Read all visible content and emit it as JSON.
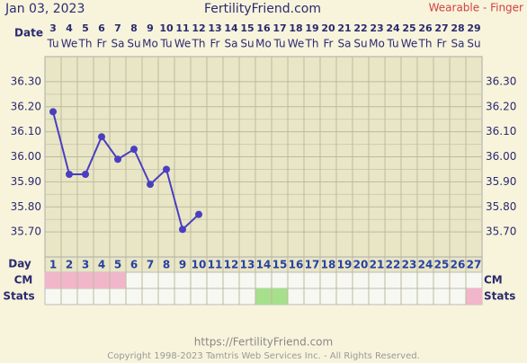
{
  "chart_data": {
    "type": "line",
    "header_date": "Jan 03, 2023",
    "site": "FertilityFriend.com",
    "source": "Wearable - Finger",
    "date_label": "Date",
    "categories": [
      "3",
      "4",
      "5",
      "6",
      "7",
      "8",
      "9",
      "10",
      "11",
      "12",
      "13",
      "14",
      "15",
      "16",
      "17",
      "18",
      "19",
      "20",
      "21",
      "22",
      "23",
      "24",
      "25",
      "26",
      "27",
      "28",
      "29"
    ],
    "weekdays": [
      "Tu",
      "We",
      "Th",
      "Fr",
      "Sa",
      "Su",
      "Mo",
      "Tu",
      "We",
      "Th",
      "Fr",
      "Sa",
      "Su",
      "Mo",
      "Tu",
      "We",
      "Th",
      "Fr",
      "Sa",
      "Su",
      "Mo",
      "Tu",
      "We",
      "Th",
      "Fr",
      "Sa",
      "Su"
    ],
    "series": [
      {
        "color": "#4a3fc0",
        "values": [
          36.18,
          35.93,
          35.93,
          36.08,
          35.99,
          36.03,
          35.89,
          35.95,
          35.71,
          35.77,
          null,
          null,
          null,
          null,
          null,
          null,
          null,
          null,
          null,
          null,
          null,
          null,
          null,
          null,
          null,
          null,
          null
        ]
      }
    ],
    "ylim": [
      35.6,
      36.4
    ],
    "yticks": [
      {
        "value": 35.7,
        "label": "35.70"
      },
      {
        "value": 35.8,
        "label": "35.80"
      },
      {
        "value": 35.9,
        "label": "35.90"
      },
      {
        "value": 36.0,
        "label": "36.00"
      },
      {
        "value": 36.1,
        "label": "36.10"
      },
      {
        "value": 36.2,
        "label": "36.20"
      },
      {
        "value": 36.3,
        "label": "36.30"
      }
    ],
    "grid": true,
    "day_label": "Day",
    "days": [
      1,
      2,
      3,
      4,
      5,
      6,
      7,
      8,
      9,
      10,
      11,
      12,
      13,
      14,
      15,
      16,
      17,
      18,
      19,
      20,
      21,
      22,
      23,
      24,
      25,
      26,
      27
    ],
    "cm_label": "CM",
    "cm_colors": [
      "#f2b6cb",
      "#f2b6cb",
      "#f2b6cb",
      "#f2b6cb",
      "#f2b6cb",
      null,
      null,
      null,
      null,
      null,
      null,
      null,
      null,
      null,
      null,
      null,
      null,
      null,
      null,
      null,
      null,
      null,
      null,
      null,
      null,
      null,
      null
    ],
    "stats_label": "Stats",
    "stats_colors": [
      null,
      null,
      null,
      null,
      null,
      null,
      null,
      null,
      null,
      null,
      null,
      null,
      null,
      "#a6e08c",
      "#a6e08c",
      null,
      null,
      null,
      null,
      null,
      null,
      null,
      null,
      null,
      null,
      null,
      "#f2b6cb"
    ],
    "footer_url": "https://FertilityFriend.com",
    "copyright": "Copyright 1998-2023 Tamtris Web Services Inc. - All Rights Reserved."
  }
}
